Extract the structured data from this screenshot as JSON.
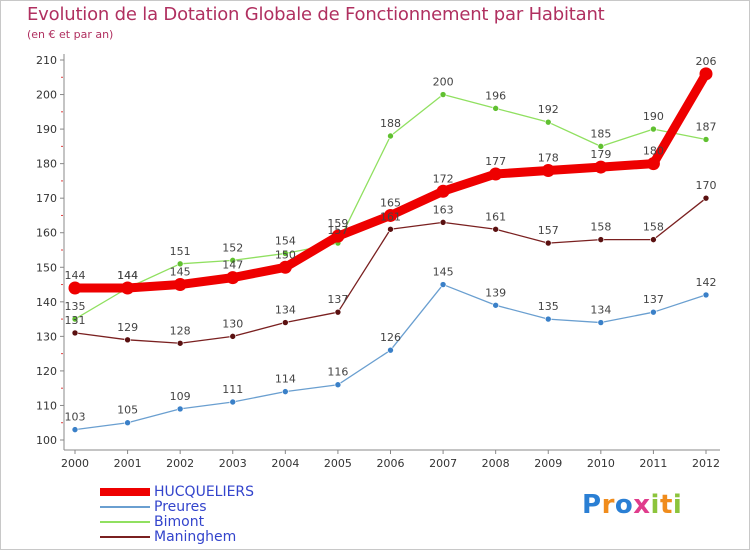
{
  "header": {
    "title": "Evolution de la Dotation Globale de Fonctionnement par Habitant",
    "subtitle": "(en € et par an)"
  },
  "logo": {
    "text": "Proxiti",
    "letters": [
      "P",
      "r",
      "o",
      "x",
      "i",
      "t",
      "i"
    ],
    "colors": [
      "#2a7fd4",
      "#f08c1c",
      "#2a7fd4",
      "#e03c8c",
      "#8cc43c",
      "#f08c1c",
      "#8cc43c"
    ]
  },
  "chart_data": {
    "type": "line",
    "title": "Evolution de la Dotation Globale de Fonctionnement par Habitant",
    "subtitle": "(en € et par an)",
    "xlabel": "",
    "ylabel": "",
    "x": [
      "2000",
      "2001",
      "2002",
      "2003",
      "2004",
      "2005",
      "2006",
      "2007",
      "2008",
      "2009",
      "2010",
      "2011",
      "2012"
    ],
    "yticks": [
      100,
      110,
      120,
      130,
      140,
      150,
      160,
      170,
      180,
      190,
      200,
      210
    ],
    "ylim": [
      100,
      210
    ],
    "grid": false,
    "legend_position": "bottom-left",
    "series": [
      {
        "name": "HUCQUELIERS",
        "color": "#ee0000",
        "marker": "#ee0000",
        "style": "thick",
        "values": [
          144,
          144,
          145,
          147,
          150,
          159,
          165,
          172,
          177,
          178,
          179,
          180,
          206
        ]
      },
      {
        "name": "Preures",
        "color": "#6a9fd0",
        "marker": "#3a80c8",
        "style": "thin",
        "values": [
          103,
          105,
          109,
          111,
          114,
          116,
          126,
          145,
          139,
          135,
          134,
          137,
          142
        ]
      },
      {
        "name": "Bimont",
        "color": "#90e060",
        "marker": "#60c030",
        "style": "thin",
        "values": [
          135,
          144,
          151,
          152,
          154,
          157,
          188,
          200,
          196,
          192,
          185,
          190,
          187
        ]
      },
      {
        "name": "Maninghem",
        "color": "#7a2020",
        "marker": "#5a1010",
        "style": "thin",
        "values": [
          131,
          129,
          128,
          130,
          134,
          137,
          161,
          163,
          161,
          157,
          158,
          158,
          170
        ]
      }
    ]
  }
}
